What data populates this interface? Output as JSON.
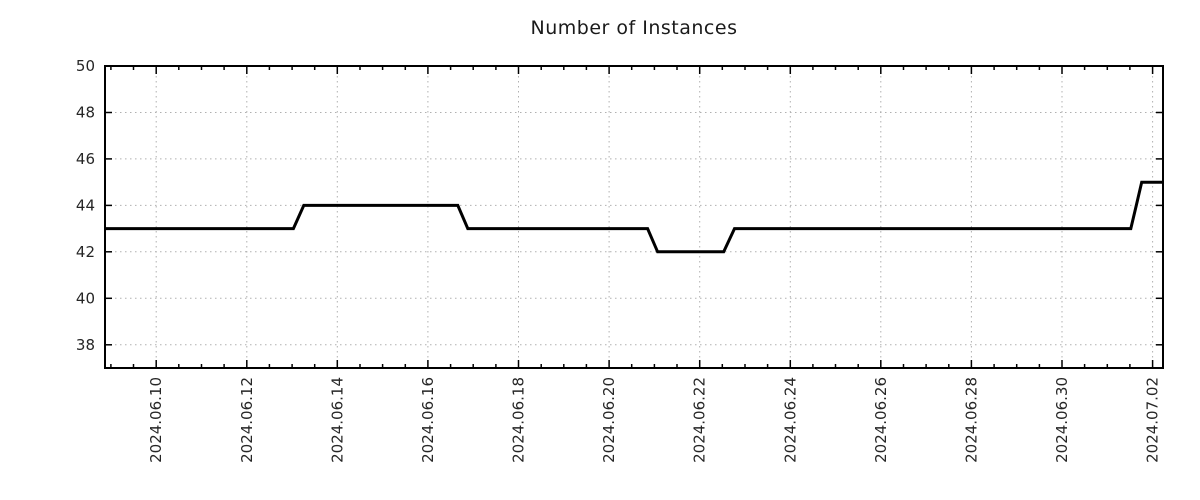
{
  "page": {
    "background": "#ffffff"
  },
  "chart_data": {
    "type": "line",
    "title": "Number of Instances",
    "legend": null,
    "series": [
      {
        "name": "instances",
        "color": "#000000",
        "line_width": 3,
        "points": [
          [
            -1.13,
            43
          ],
          [
            3.03,
            43
          ],
          [
            3.26,
            44
          ],
          [
            6.66,
            44
          ],
          [
            6.88,
            43
          ],
          [
            10.85,
            43
          ],
          [
            11.07,
            42
          ],
          [
            12.53,
            42
          ],
          [
            12.77,
            43
          ],
          [
            21.52,
            43
          ],
          [
            21.64,
            44
          ],
          [
            21.76,
            45
          ],
          [
            22.23,
            45
          ]
        ]
      }
    ],
    "x_axis": {
      "tick_labels": [
        "2024.06.10",
        "2024.06.12",
        "2024.06.14",
        "2024.06.16",
        "2024.06.18",
        "2024.06.20",
        "2024.06.22",
        "2024.06.24",
        "2024.06.26",
        "2024.06.28",
        "2024.06.30",
        "2024.07.02"
      ],
      "tick_days": [
        0,
        2,
        4,
        6,
        8,
        10,
        12,
        14,
        16,
        18,
        20,
        22
      ],
      "minor_tick_step_days": 0.5,
      "xlim_days": [
        -1.13,
        22.23
      ]
    },
    "y_axis": {
      "ticks": [
        38,
        40,
        42,
        44,
        46,
        48,
        50
      ],
      "ylim": [
        37,
        50
      ]
    },
    "grid": {
      "show": true,
      "color": "#b0b0b0",
      "style": "dotted"
    },
    "axis_color": "#000000",
    "text_color": "#262626"
  }
}
